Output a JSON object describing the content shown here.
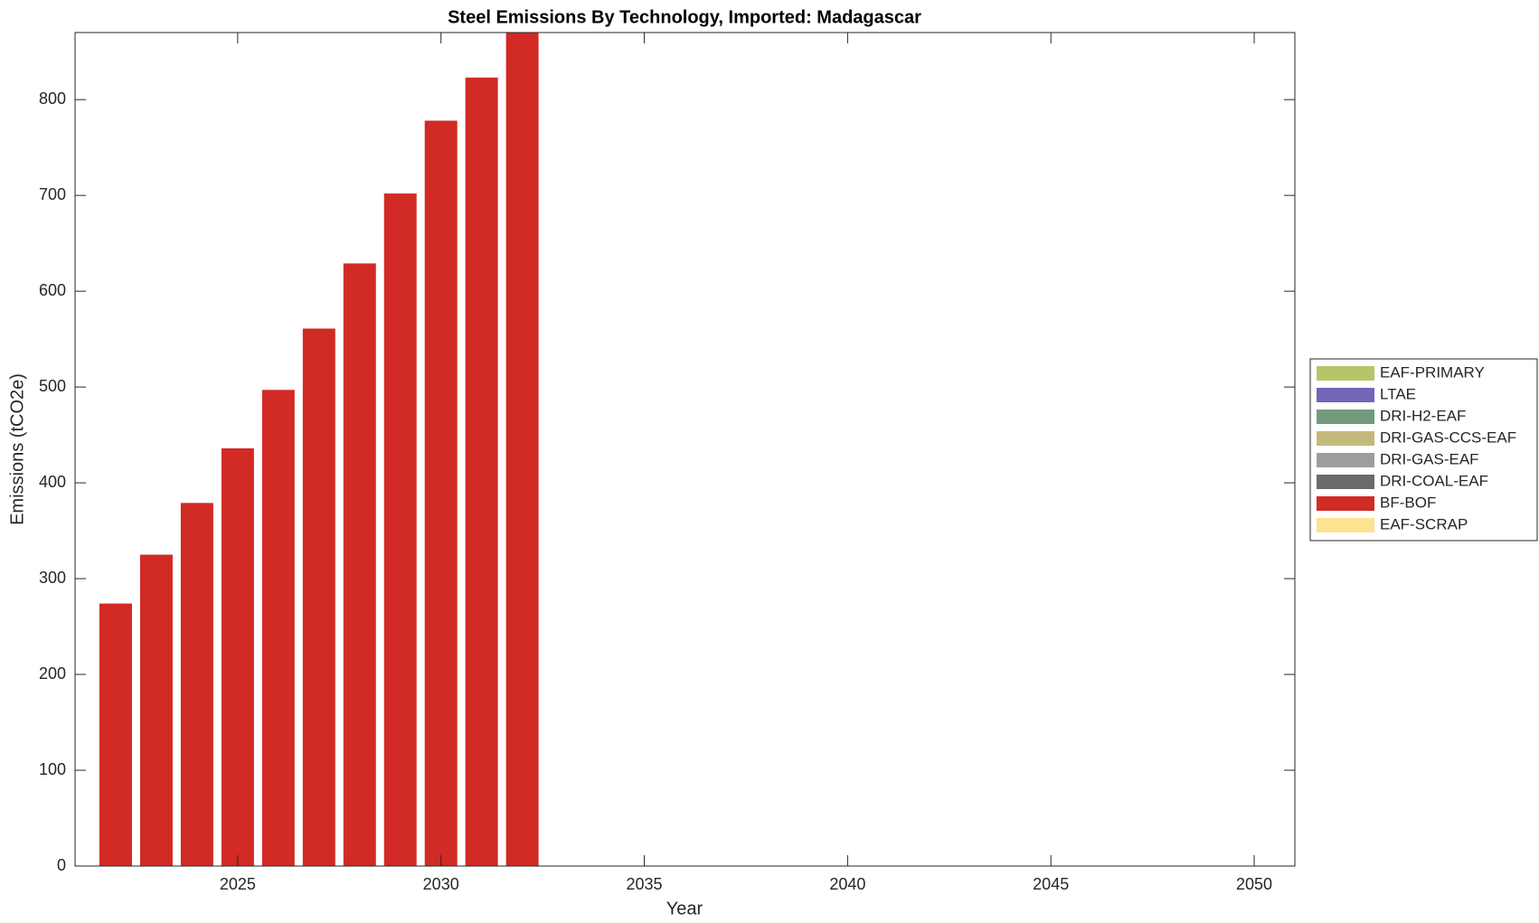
{
  "chart_data": {
    "type": "stacked-bar",
    "title": "Steel Emissions By Technology, Imported: Madagascar",
    "xlabel": "Year",
    "ylabel": "Emissions (tCO2e)",
    "x": [
      2022,
      2023,
      2024,
      2025,
      2026,
      2027,
      2028,
      2029,
      2030,
      2031,
      2032
    ],
    "series": [
      {
        "name": "EAF-PRIMARY",
        "color": "#b8c46a",
        "values": [
          0,
          0,
          0,
          0,
          0,
          0,
          0,
          0,
          0,
          0,
          0
        ]
      },
      {
        "name": "LTAE",
        "color": "#7166b8",
        "values": [
          0,
          0,
          0,
          0,
          0,
          0,
          0,
          0,
          0,
          0,
          0
        ]
      },
      {
        "name": "DRI-H2-EAF",
        "color": "#739a7c",
        "values": [
          0,
          0,
          0,
          0,
          0,
          0,
          0,
          0,
          0,
          0,
          0
        ]
      },
      {
        "name": "DRI-GAS-CCS-EAF",
        "color": "#c4b97c",
        "values": [
          0,
          0,
          0,
          0,
          0,
          0,
          0,
          0,
          0,
          0,
          0
        ]
      },
      {
        "name": "DRI-GAS-EAF",
        "color": "#9d9d9d",
        "values": [
          0,
          0,
          0,
          0,
          0,
          0,
          0,
          0,
          0,
          0,
          0
        ]
      },
      {
        "name": "DRI-COAL-EAF",
        "color": "#6a6a6a",
        "values": [
          0,
          0,
          0,
          0,
          0,
          0,
          0,
          0,
          0,
          0,
          0
        ]
      },
      {
        "name": "BF-BOF",
        "color": "#d22a25",
        "values": [
          274,
          325,
          379,
          436,
          497,
          561,
          629,
          702,
          778,
          823,
          880
        ]
      },
      {
        "name": "EAF-SCRAP",
        "color": "#fde391",
        "values": [
          0,
          0,
          0,
          0,
          0,
          0,
          0,
          0,
          0,
          0,
          0
        ]
      }
    ],
    "xlim": [
      2021,
      2051
    ],
    "xticks": [
      2025,
      2030,
      2035,
      2040,
      2045,
      2050
    ],
    "ylim": [
      0,
      870
    ],
    "yticks": [
      0,
      100,
      200,
      300,
      400,
      500,
      600,
      700,
      800
    ],
    "grid": false,
    "legend": "right"
  }
}
